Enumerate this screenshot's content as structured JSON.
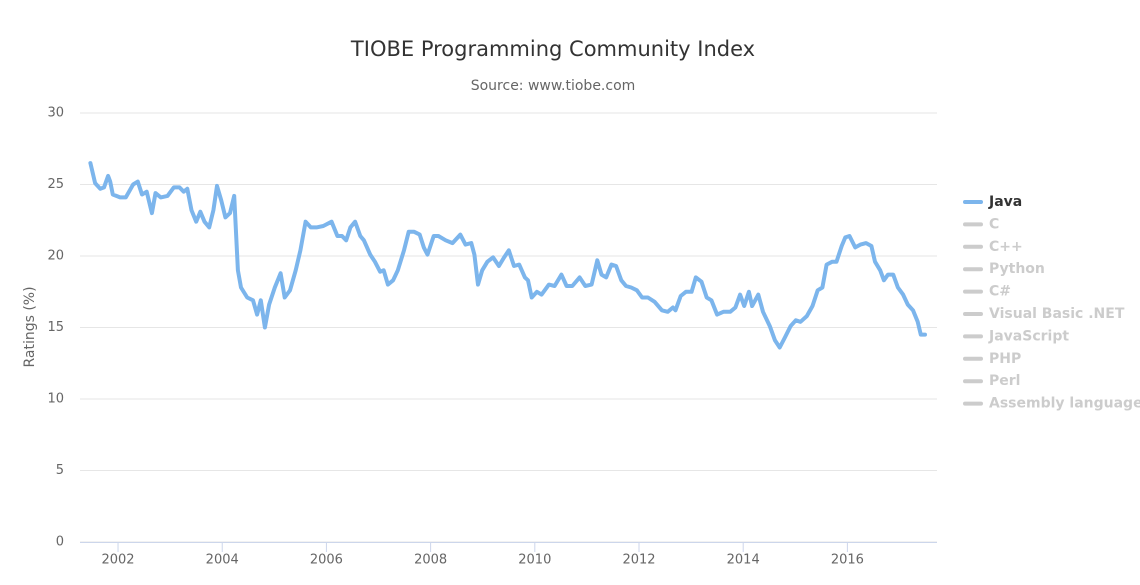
{
  "chart_data": {
    "type": "line",
    "title": "TIOBE Programming Community Index",
    "subtitle": "Source: www.tiobe.com",
    "y_label": "Ratings (%)",
    "xlim": [
      2001.27,
      2017.72
    ],
    "xticks": [
      2002,
      2004,
      2006,
      2008,
      2010,
      2012,
      2014,
      2016
    ],
    "ylim": [
      0,
      30
    ],
    "yticks": [
      0,
      5,
      10,
      15,
      20,
      25,
      30
    ],
    "grid": true,
    "legend": "right",
    "x": [
      2001.47,
      2001.56,
      2001.66,
      2001.73,
      2001.81,
      2001.85,
      2001.9,
      2002.04,
      2002.15,
      2002.29,
      2002.38,
      2002.46,
      2002.55,
      2002.65,
      2002.72,
      2002.82,
      2002.95,
      2003.07,
      2003.18,
      2003.26,
      2003.33,
      2003.41,
      2003.5,
      2003.58,
      2003.66,
      2003.75,
      2003.83,
      2003.9,
      2003.98,
      2004.06,
      2004.15,
      2004.23,
      2004.3,
      2004.36,
      2004.48,
      2004.59,
      2004.67,
      2004.74,
      2004.82,
      2004.9,
      2005.01,
      2005.12,
      2005.2,
      2005.3,
      2005.41,
      2005.5,
      2005.6,
      2005.7,
      2005.81,
      2005.94,
      2006.1,
      2006.21,
      2006.3,
      2006.38,
      2006.46,
      2006.55,
      2006.65,
      2006.72,
      2006.84,
      2006.93,
      2007.03,
      2007.1,
      2007.18,
      2007.28,
      2007.37,
      2007.49,
      2007.58,
      2007.68,
      2007.79,
      2007.87,
      2007.94,
      2008.06,
      2008.15,
      2008.29,
      2008.42,
      2008.57,
      2008.67,
      2008.78,
      2008.84,
      2008.91,
      2008.99,
      2009.09,
      2009.2,
      2009.31,
      2009.41,
      2009.5,
      2009.6,
      2009.7,
      2009.81,
      2009.87,
      2009.94,
      2010.04,
      2010.13,
      2010.27,
      2010.38,
      2010.51,
      2010.61,
      2010.72,
      2010.86,
      2010.97,
      2011.09,
      2011.2,
      2011.28,
      2011.37,
      2011.47,
      2011.56,
      2011.66,
      2011.75,
      2011.85,
      2011.96,
      2012.06,
      2012.17,
      2012.3,
      2012.44,
      2012.55,
      2012.65,
      2012.7,
      2012.8,
      2012.9,
      2013.01,
      2013.09,
      2013.2,
      2013.3,
      2013.39,
      2013.5,
      2013.62,
      2013.75,
      2013.85,
      2013.94,
      2014.02,
      2014.11,
      2014.17,
      2014.29,
      2014.38,
      2014.51,
      2014.61,
      2014.7,
      2014.8,
      2014.91,
      2015.01,
      2015.1,
      2015.22,
      2015.33,
      2015.43,
      2015.52,
      2015.6,
      2015.71,
      2015.79,
      2015.89,
      2015.96,
      2016.04,
      2016.15,
      2016.25,
      2016.36,
      2016.46,
      2016.53,
      2016.63,
      2016.7,
      2016.78,
      2016.88,
      2016.97,
      2017.07,
      2017.16,
      2017.26,
      2017.35,
      2017.41,
      2017.49
    ],
    "series": [
      {
        "name": "Java",
        "color": "#7cb5ec",
        "visible": true,
        "values": [
          26.5,
          25.1,
          24.7,
          24.8,
          25.6,
          25.2,
          24.3,
          24.1,
          24.1,
          25.0,
          25.2,
          24.3,
          24.5,
          23.0,
          24.4,
          24.1,
          24.2,
          24.8,
          24.8,
          24.5,
          24.7,
          23.2,
          22.4,
          23.1,
          22.4,
          22.0,
          23.2,
          24.9,
          23.9,
          22.7,
          23.0,
          24.2,
          19.0,
          17.8,
          17.1,
          16.9,
          15.9,
          16.9,
          15.0,
          16.6,
          17.8,
          18.8,
          17.1,
          17.6,
          19.0,
          20.4,
          22.4,
          22.0,
          22.0,
          22.1,
          22.4,
          21.4,
          21.4,
          21.1,
          22.0,
          22.4,
          21.4,
          21.1,
          20.1,
          19.6,
          18.9,
          19.0,
          18.0,
          18.3,
          19.0,
          20.4,
          21.7,
          21.7,
          21.5,
          20.6,
          20.1,
          21.4,
          21.4,
          21.1,
          20.9,
          21.5,
          20.8,
          20.9,
          20.1,
          18.0,
          19.0,
          19.6,
          19.9,
          19.3,
          19.9,
          20.4,
          19.3,
          19.4,
          18.5,
          18.3,
          17.1,
          17.5,
          17.3,
          18.0,
          17.9,
          18.7,
          17.9,
          17.9,
          18.5,
          17.9,
          18.0,
          19.7,
          18.7,
          18.5,
          19.4,
          19.3,
          18.3,
          17.9,
          17.8,
          17.6,
          17.1,
          17.1,
          16.8,
          16.2,
          16.1,
          16.4,
          16.2,
          17.2,
          17.5,
          17.5,
          18.5,
          18.2,
          17.1,
          16.9,
          15.9,
          16.1,
          16.1,
          16.4,
          17.3,
          16.5,
          17.5,
          16.5,
          17.3,
          16.1,
          15.1,
          14.1,
          13.6,
          14.3,
          15.1,
          15.5,
          15.4,
          15.8,
          16.5,
          17.6,
          17.8,
          19.4,
          19.6,
          19.6,
          20.7,
          21.3,
          21.4,
          20.6,
          20.8,
          20.9,
          20.7,
          19.6,
          19.0,
          18.3,
          18.7,
          18.7,
          17.8,
          17.3,
          16.6,
          16.2,
          15.4,
          14.5,
          14.5
        ]
      },
      {
        "name": "C",
        "color": "#cccccc",
        "visible": false
      },
      {
        "name": "C++",
        "color": "#cccccc",
        "visible": false
      },
      {
        "name": "Python",
        "color": "#cccccc",
        "visible": false
      },
      {
        "name": "C#",
        "color": "#cccccc",
        "visible": false
      },
      {
        "name": "Visual Basic .NET",
        "color": "#cccccc",
        "visible": false
      },
      {
        "name": "JavaScript",
        "color": "#cccccc",
        "visible": false
      },
      {
        "name": "PHP",
        "color": "#cccccc",
        "visible": false
      },
      {
        "name": "Perl",
        "color": "#cccccc",
        "visible": false
      },
      {
        "name": "Assembly language",
        "color": "#cccccc",
        "visible": false
      }
    ]
  }
}
